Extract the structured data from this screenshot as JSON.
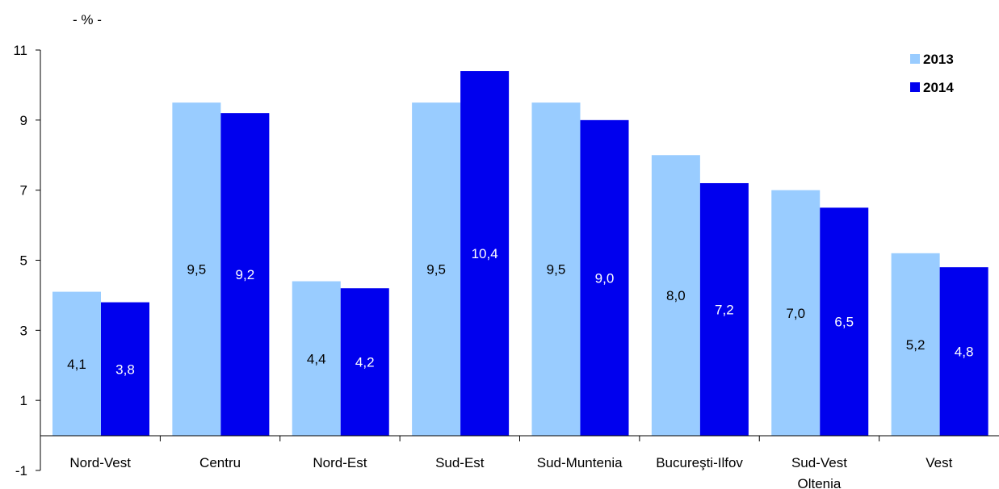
{
  "chart_data": {
    "type": "bar",
    "unit_label": "- % -",
    "categories": [
      [
        "Nord-Vest"
      ],
      [
        "Centru"
      ],
      [
        "Nord-Est"
      ],
      [
        "Sud-Est"
      ],
      [
        "Sud-Muntenia"
      ],
      [
        "Bucureşti-Ilfov"
      ],
      [
        "Sud-Vest",
        "Oltenia"
      ],
      [
        "Vest"
      ]
    ],
    "series": [
      {
        "name": "2013",
        "color": "#99ccff",
        "label_color": "#000000",
        "values": [
          4.1,
          9.5,
          4.4,
          9.5,
          9.5,
          8.0,
          7.0,
          5.2
        ],
        "labels": [
          "4,1",
          "9,5",
          "4,4",
          "9,5",
          "9,5",
          "8,0",
          "7,0",
          "5,2"
        ]
      },
      {
        "name": "2014",
        "color": "#0000ee",
        "label_color": "#ffffff",
        "values": [
          3.8,
          9.2,
          4.2,
          10.4,
          9.0,
          7.2,
          6.5,
          4.8
        ],
        "labels": [
          "3,8",
          "9,2",
          "4,2",
          "10,4",
          "9,0",
          "7,2",
          "6,5",
          "4,8"
        ]
      }
    ],
    "ylim": [
      -1,
      11
    ],
    "yticks": [
      -1,
      1,
      3,
      5,
      7,
      9,
      11
    ],
    "legend_position": "top-right",
    "grid": false
  }
}
